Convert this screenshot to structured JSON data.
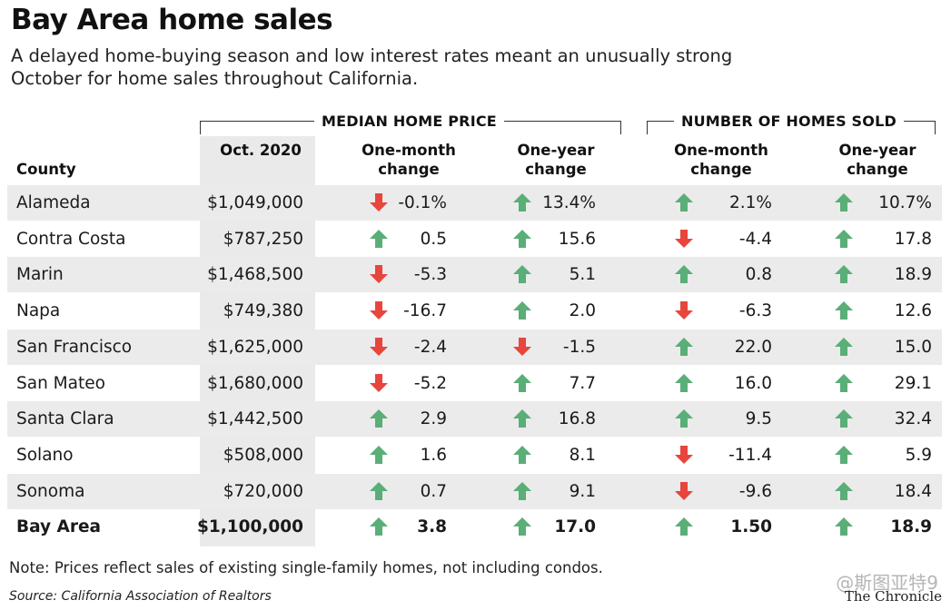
{
  "header": {
    "title": "Bay Area home sales",
    "subtitle": "A delayed home-buying season and low interest rates meant an unusually strong October for home sales throughout California."
  },
  "footer": {
    "note": "Note: Prices reflect sales of existing single-family homes, not including condos.",
    "source": "Source: California Association of Realtors",
    "credit": "The Chronicle",
    "watermark": "@斯图亚特9"
  },
  "colors": {
    "up": "#5aae77",
    "down": "#e8453c",
    "band": "#ebebeb"
  },
  "chart_data": {
    "type": "table",
    "groups": [
      "MEDIAN HOME PRICE",
      "NUMBER OF HOMES SOLD"
    ],
    "columns": {
      "county": "County",
      "price": "Oct. 2020",
      "price_month": "One-month change",
      "price_year": "One-year change",
      "sold_month": "One-month change",
      "sold_year": "One-year change"
    },
    "rows": [
      {
        "county": "Alameda",
        "price": "$1,049,000",
        "price_month": "-0.1%",
        "price_year": "13.4%",
        "sold_month": "2.1%",
        "sold_year": "10.7%",
        "dirs": [
          "down",
          "up",
          "up",
          "up"
        ]
      },
      {
        "county": "Contra Costa",
        "price": "$787,250",
        "price_month": "0.5",
        "price_year": "15.6",
        "sold_month": "-4.4",
        "sold_year": "17.8",
        "dirs": [
          "up",
          "up",
          "down",
          "up"
        ]
      },
      {
        "county": "Marin",
        "price": "$1,468,500",
        "price_month": "-5.3",
        "price_year": "5.1",
        "sold_month": "0.8",
        "sold_year": "18.9",
        "dirs": [
          "down",
          "up",
          "up",
          "up"
        ]
      },
      {
        "county": "Napa",
        "price": "$749,380",
        "price_month": "-16.7",
        "price_year": "2.0",
        "sold_month": "-6.3",
        "sold_year": "12.6",
        "dirs": [
          "down",
          "up",
          "down",
          "up"
        ]
      },
      {
        "county": "San Francisco",
        "price": "$1,625,000",
        "price_month": "-2.4",
        "price_year": "-1.5",
        "sold_month": "22.0",
        "sold_year": "15.0",
        "dirs": [
          "down",
          "down",
          "up",
          "up"
        ]
      },
      {
        "county": "San Mateo",
        "price": "$1,680,000",
        "price_month": "-5.2",
        "price_year": "7.7",
        "sold_month": "16.0",
        "sold_year": "29.1",
        "dirs": [
          "down",
          "up",
          "up",
          "up"
        ]
      },
      {
        "county": "Santa Clara",
        "price": "$1,442,500",
        "price_month": "2.9",
        "price_year": "16.8",
        "sold_month": "9.5",
        "sold_year": "32.4",
        "dirs": [
          "up",
          "up",
          "up",
          "up"
        ]
      },
      {
        "county": "Solano",
        "price": "$508,000",
        "price_month": "1.6",
        "price_year": "8.1",
        "sold_month": "-11.4",
        "sold_year": "5.9",
        "dirs": [
          "up",
          "up",
          "down",
          "up"
        ]
      },
      {
        "county": "Sonoma",
        "price": "$720,000",
        "price_month": "0.7",
        "price_year": "9.1",
        "sold_month": "-9.6",
        "sold_year": "18.4",
        "dirs": [
          "up",
          "up",
          "down",
          "up"
        ]
      },
      {
        "county": "Bay Area",
        "price": "$1,100,000",
        "price_month": "3.8",
        "price_year": "17.0",
        "sold_month": "1.50",
        "sold_year": "18.9",
        "dirs": [
          "up",
          "up",
          "up",
          "up"
        ],
        "total": true
      }
    ]
  }
}
